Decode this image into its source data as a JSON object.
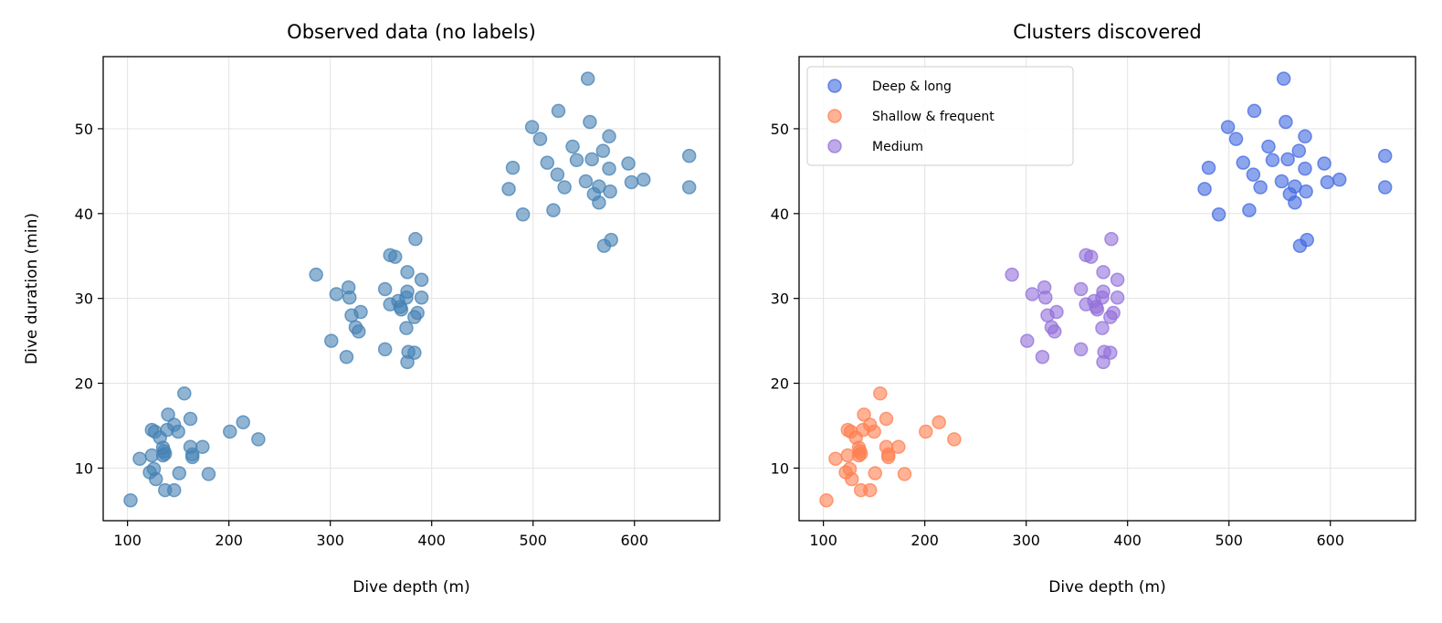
{
  "chart_data": [
    {
      "type": "scatter",
      "title": "Observed data (no labels)",
      "xlabel": "Dive depth (m)",
      "ylabel": "Dive duration (min)",
      "xlim": [
        76,
        684
      ],
      "ylim": [
        3.8,
        58.5
      ],
      "xticks": [
        100,
        200,
        300,
        400,
        500,
        600
      ],
      "yticks": [
        10,
        20,
        30,
        40,
        50
      ],
      "grid": true,
      "series": [
        {
          "color": "#4682b4",
          "alpha": 0.6,
          "source": "all"
        }
      ]
    },
    {
      "type": "scatter",
      "title": "Clusters discovered",
      "xlabel": "Dive depth (m)",
      "ylabel": "",
      "xlim": [
        76,
        684
      ],
      "ylim": [
        3.8,
        58.5
      ],
      "xticks": [
        100,
        200,
        300,
        400,
        500,
        600
      ],
      "yticks": [
        10,
        20,
        30,
        40,
        50
      ],
      "grid": true,
      "legend": "upper-left",
      "series": [
        {
          "name": "Deep & long",
          "color": "#4169e1",
          "alpha": 0.6,
          "points": [
            [
              554,
              55.9
            ],
            [
              525,
              52.1
            ],
            [
              499,
              50.2
            ],
            [
              556,
              50.8
            ],
            [
              507,
              48.8
            ],
            [
              575,
              49.1
            ],
            [
              539,
              47.9
            ],
            [
              569,
              47.4
            ],
            [
              480,
              45.4
            ],
            [
              514,
              46.0
            ],
            [
              543,
              46.3
            ],
            [
              558,
              46.4
            ],
            [
              594,
              45.9
            ],
            [
              524,
              44.6
            ],
            [
              575,
              45.3
            ],
            [
              531,
              43.1
            ],
            [
              552,
              43.8
            ],
            [
              565,
              43.2
            ],
            [
              560,
              42.3
            ],
            [
              576,
              42.6
            ],
            [
              597,
              43.7
            ],
            [
              609,
              44.0
            ],
            [
              476,
              42.9
            ],
            [
              490,
              39.9
            ],
            [
              520,
              40.4
            ],
            [
              565,
              41.3
            ],
            [
              570,
              36.2
            ],
            [
              577,
              36.9
            ],
            [
              654,
              46.8
            ],
            [
              654,
              43.1
            ]
          ]
        },
        {
          "name": "Shallow & frequent",
          "color": "#ff7f50",
          "alpha": 0.6,
          "points": [
            [
              156,
              18.8
            ],
            [
              140,
              16.3
            ],
            [
              162,
              15.8
            ],
            [
              214,
              15.4
            ],
            [
              146,
              15.1
            ],
            [
              124,
              14.5
            ],
            [
              127,
              14.3
            ],
            [
              139,
              14.5
            ],
            [
              150,
              14.3
            ],
            [
              201,
              14.3
            ],
            [
              132,
              13.6
            ],
            [
              229,
              13.4
            ],
            [
              162,
              12.5
            ],
            [
              174,
              12.5
            ],
            [
              135,
              12.4
            ],
            [
              136,
              12.0
            ],
            [
              137,
              11.7
            ],
            [
              135,
              11.5
            ],
            [
              124,
              11.5
            ],
            [
              112,
              11.1
            ],
            [
              164,
              11.6
            ],
            [
              164,
              11.3
            ],
            [
              122,
              9.5
            ],
            [
              126,
              9.9
            ],
            [
              128,
              8.7
            ],
            [
              151,
              9.4
            ],
            [
              180,
              9.3
            ],
            [
              137,
              7.4
            ],
            [
              146,
              7.4
            ],
            [
              103,
              6.2
            ]
          ]
        },
        {
          "name": "Medium",
          "color": "#9370db",
          "alpha": 0.6,
          "points": [
            [
              384,
              37.0
            ],
            [
              359,
              35.1
            ],
            [
              364,
              34.9
            ],
            [
              286,
              32.8
            ],
            [
              376,
              33.1
            ],
            [
              390,
              32.2
            ],
            [
              306,
              30.5
            ],
            [
              318,
              31.3
            ],
            [
              319,
              30.1
            ],
            [
              354,
              31.1
            ],
            [
              376,
              30.8
            ],
            [
              375,
              30.1
            ],
            [
              390,
              30.1
            ],
            [
              321,
              28.0
            ],
            [
              330,
              28.4
            ],
            [
              359,
              29.3
            ],
            [
              367,
              29.7
            ],
            [
              369,
              29.0
            ],
            [
              370,
              28.7
            ],
            [
              386,
              28.3
            ],
            [
              383,
              27.8
            ],
            [
              325,
              26.6
            ],
            [
              328,
              26.1
            ],
            [
              375,
              26.5
            ],
            [
              301,
              25.0
            ],
            [
              354,
              24.0
            ],
            [
              316,
              23.1
            ],
            [
              377,
              23.7
            ],
            [
              383,
              23.6
            ],
            [
              376,
              22.5
            ]
          ]
        }
      ]
    }
  ]
}
